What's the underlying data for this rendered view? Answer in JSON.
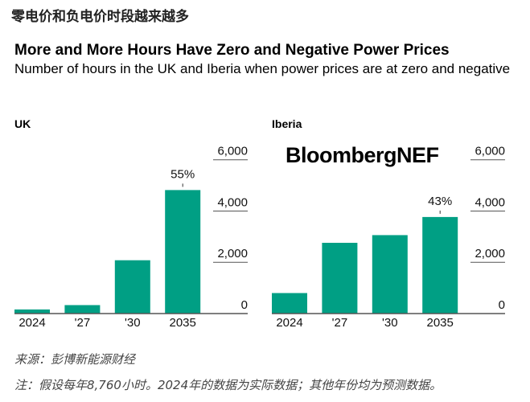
{
  "cn_title": "零电价和负电价时段越来越多",
  "title": "More and More Hours Have Zero and Negative Power Prices",
  "subtitle": "Number of hours in the UK and Iberia when power prices are at zero and negative",
  "logo": "BloombergNEF",
  "source": "来源：彭博新能源财经",
  "note": "注：假设每年8,760小时。2024年的数据为实际数据；其他年份均为预测数据。",
  "colors": {
    "bar": "#009f84",
    "axis": "#555555"
  },
  "chart_data": [
    {
      "type": "bar",
      "title": "UK",
      "categories": [
        "2024",
        "'27",
        "'30",
        "2035"
      ],
      "values": [
        160,
        330,
        2080,
        4818
      ],
      "annotations": [
        {
          "category": "2035",
          "text": "55%"
        }
      ],
      "ylim": [
        0,
        6000
      ],
      "yticks": [
        "0",
        "2,000",
        "4,000",
        "6,000"
      ],
      "ytick_values": [
        0,
        2000,
        4000,
        6000
      ],
      "y_axis_side": "right",
      "grid": false
    },
    {
      "type": "bar",
      "title": "Iberia",
      "categories": [
        "2024",
        "'27",
        "'30",
        "2035"
      ],
      "values": [
        800,
        2760,
        3060,
        3767
      ],
      "annotations": [
        {
          "category": "2035",
          "text": "43%"
        }
      ],
      "ylim": [
        0,
        6000
      ],
      "yticks": [
        "0",
        "2,000",
        "4,000",
        "6,000"
      ],
      "ytick_values": [
        0,
        2000,
        4000,
        6000
      ],
      "y_axis_side": "right",
      "grid": false
    }
  ]
}
